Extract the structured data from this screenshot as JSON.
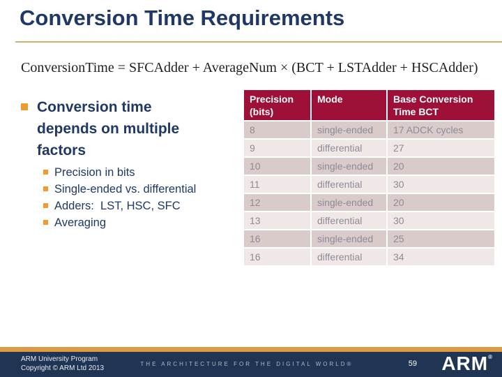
{
  "slide": {
    "title": "Conversion Time Requirements",
    "formula": "ConversionTime = SFCAdder + AverageNum × (BCT + LSTAdder + HSCAdder)"
  },
  "bullets": {
    "main": "Conversion time depends on multiple factors",
    "items": [
      "Precision in bits",
      "Single-ended vs. differential",
      "Adders:  LST, HSC, SFC",
      "Averaging"
    ]
  },
  "table": {
    "headers": [
      "Precision (bits)",
      "Mode",
      "Base Conversion Time BCT"
    ],
    "rows": [
      [
        "8",
        "single-ended",
        "17 ADCK cycles"
      ],
      [
        "9",
        "differential",
        "27"
      ],
      [
        "10",
        "single-ended",
        "20"
      ],
      [
        "11",
        "differential",
        "30"
      ],
      [
        "12",
        "single-ended",
        "20"
      ],
      [
        "13",
        "differential",
        "30"
      ],
      [
        "16",
        "single-ended",
        "25"
      ],
      [
        "16",
        "differential",
        "34"
      ]
    ]
  },
  "footer": {
    "line1": "ARM University Program",
    "line2": "Copyright © ARM Ltd 2013",
    "tagline": "THE ARCHITECTURE FOR THE DIGITAL WORLD®",
    "page_number": "59",
    "logo_text": "ARM",
    "logo_reg": "®"
  },
  "colors": {
    "title_navy": "#1F3864",
    "rule_gold": "#D3B169",
    "bullet_orange": "#EE9C31",
    "table_header_bg": "#9E1038",
    "row_dark": "#D9CBC9",
    "row_light": "#EFE8E6",
    "cell_text": "#8D8B97",
    "footer_orange": "#DE9A41",
    "footer_navy": "#1F3553"
  }
}
